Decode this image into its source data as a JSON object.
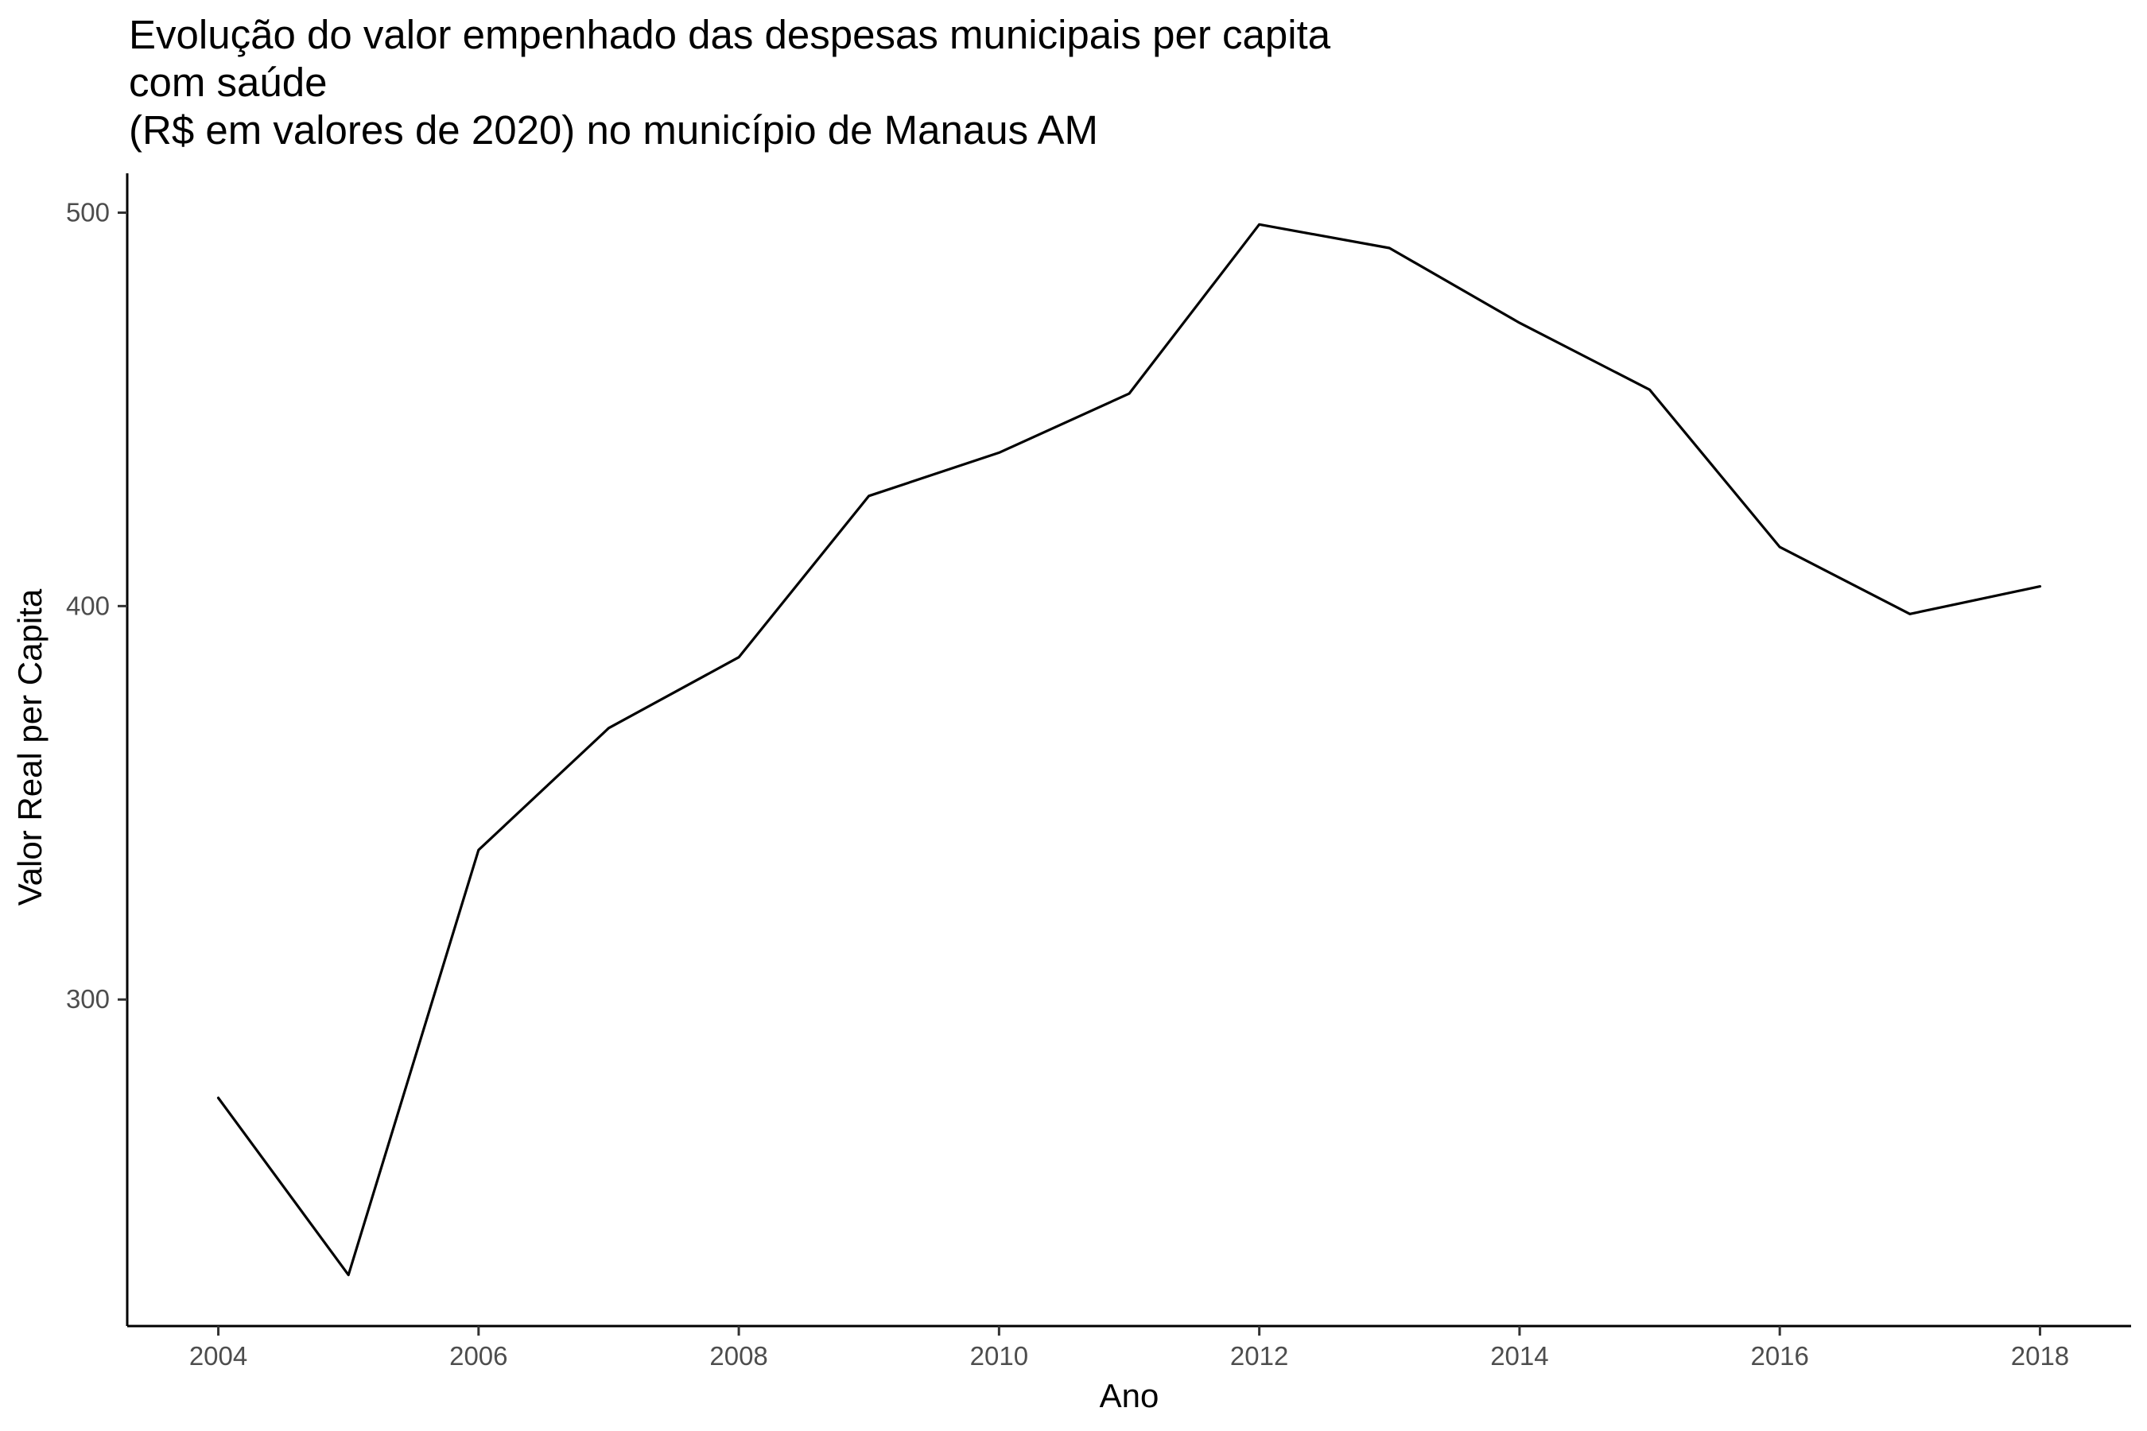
{
  "chart_data": {
    "type": "line",
    "title_lines": [
      "Evolução do valor empenhado das despesas municipais per capita",
      "com saúde",
      "(R$ em valores de 2020) no município de Manaus AM"
    ],
    "xlabel": "Ano",
    "ylabel": "Valor Real per Capita",
    "x": [
      2004,
      2005,
      2006,
      2007,
      2008,
      2009,
      2010,
      2011,
      2012,
      2013,
      2014,
      2015,
      2016,
      2017,
      2018
    ],
    "values": [
      275,
      230,
      338,
      369,
      387,
      428,
      439,
      454,
      497,
      491,
      472,
      455,
      415,
      398,
      405
    ],
    "xlim": [
      2003.3,
      2018.7
    ],
    "ylim": [
      217,
      510
    ],
    "xticks": [
      2004,
      2006,
      2008,
      2010,
      2012,
      2014,
      2016,
      2018
    ],
    "yticks": [
      300,
      400,
      500
    ],
    "line_color": "#000000",
    "grid": false
  }
}
